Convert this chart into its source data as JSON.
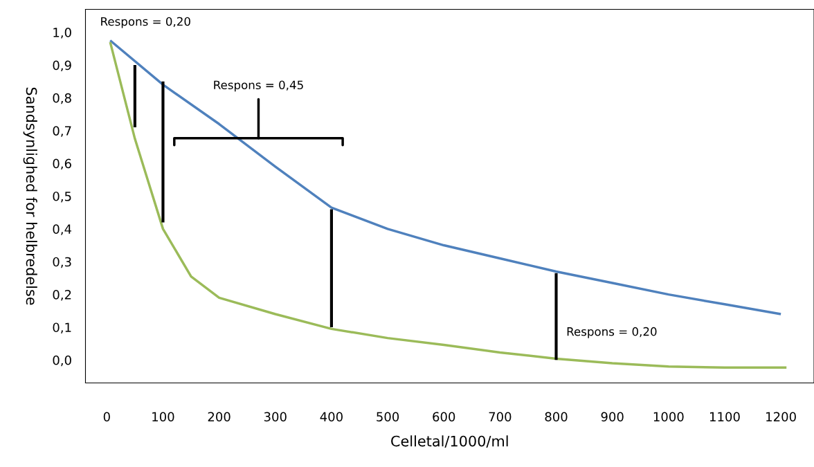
{
  "chart_data": {
    "type": "line",
    "xlabel": "Celletal/1000/ml",
    "ylabel": "Sandsynlighed for helbredelse",
    "xlim": [
      -38,
      1259
    ],
    "ylim": [
      -0.07,
      1.07
    ],
    "xticks": [
      0,
      100,
      200,
      300,
      400,
      500,
      600,
      700,
      800,
      900,
      1000,
      1100,
      1200
    ],
    "yticks": [
      {
        "value": 0.0,
        "label": "0,0"
      },
      {
        "value": 0.1,
        "label": "0,1"
      },
      {
        "value": 0.2,
        "label": "0,2"
      },
      {
        "value": 0.3,
        "label": "0,3"
      },
      {
        "value": 0.4,
        "label": "0,4"
      },
      {
        "value": 0.5,
        "label": "0,5"
      },
      {
        "value": 0.6,
        "label": "0,6"
      },
      {
        "value": 0.7,
        "label": "0,7"
      },
      {
        "value": 0.8,
        "label": "0,8"
      },
      {
        "value": 0.9,
        "label": "0,9"
      },
      {
        "value": 1.0,
        "label": "1,0"
      }
    ],
    "grid": false,
    "legend": false,
    "marker": "none",
    "line_style": "solid",
    "series": [
      {
        "color": "#4f81bd",
        "x": [
          6,
          100,
          200,
          300,
          400,
          500,
          600,
          700,
          800,
          900,
          1000,
          1100,
          1200
        ],
        "values": [
          0.975,
          0.84,
          0.72,
          0.59,
          0.465,
          0.4,
          0.35,
          0.31,
          0.27,
          0.235,
          0.2,
          0.17,
          0.14
        ]
      },
      {
        "color": "#9bbb59",
        "x": [
          6,
          50,
          100,
          150,
          200,
          300,
          400,
          500,
          600,
          700,
          800,
          900,
          1000,
          1100,
          1210
        ],
        "values": [
          0.97,
          0.675,
          0.4,
          0.255,
          0.19,
          0.14,
          0.095,
          0.067,
          0.046,
          0.023,
          0.004,
          -0.01,
          -0.02,
          -0.023,
          -0.023
        ]
      },
      {
        "color": "#000000",
        "x": [
          50,
          50
        ],
        "values": [
          0.71,
          0.9
        ]
      },
      {
        "color": "#000000",
        "x": [
          100,
          100
        ],
        "values": [
          0.42,
          0.85
        ]
      },
      {
        "color": "#000000",
        "x": [
          400,
          400
        ],
        "values": [
          0.1,
          0.46
        ]
      },
      {
        "color": "#000000",
        "x": [
          800,
          800
        ],
        "values": [
          0.0,
          0.265
        ]
      }
    ],
    "annotations": [
      "Respons = 0,20",
      "Respons = 0,45",
      "Respons = 0,20"
    ]
  }
}
